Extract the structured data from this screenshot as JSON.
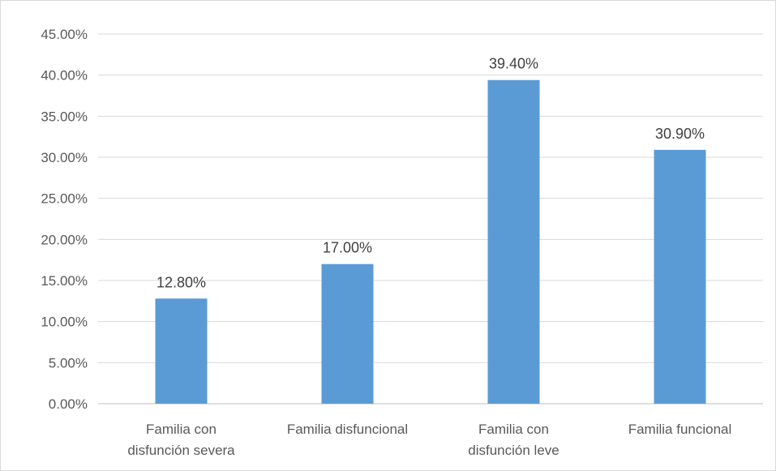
{
  "chart_data": {
    "type": "bar",
    "title": "",
    "xlabel": "",
    "ylabel": "",
    "categories": [
      [
        "Familia con",
        "disfunción severa"
      ],
      [
        "Familia disfuncional"
      ],
      [
        "Familia con",
        "disfunción leve"
      ],
      [
        "Familia funcional"
      ]
    ],
    "values": [
      12.8,
      17.0,
      39.4,
      30.9
    ],
    "data_labels": [
      "12.80%",
      "17.00%",
      "39.40%",
      "30.90%"
    ],
    "ylim": [
      0,
      45
    ],
    "y_ticks": [
      0,
      5,
      10,
      15,
      20,
      25,
      30,
      35,
      40,
      45
    ],
    "y_tick_labels": [
      "0.00%",
      "5.00%",
      "10.00%",
      "15.00%",
      "20.00%",
      "25.00%",
      "30.00%",
      "35.00%",
      "40.00%",
      "45.00%"
    ],
    "grid": true,
    "legend": "none",
    "bar_color": "#5b9bd5"
  }
}
